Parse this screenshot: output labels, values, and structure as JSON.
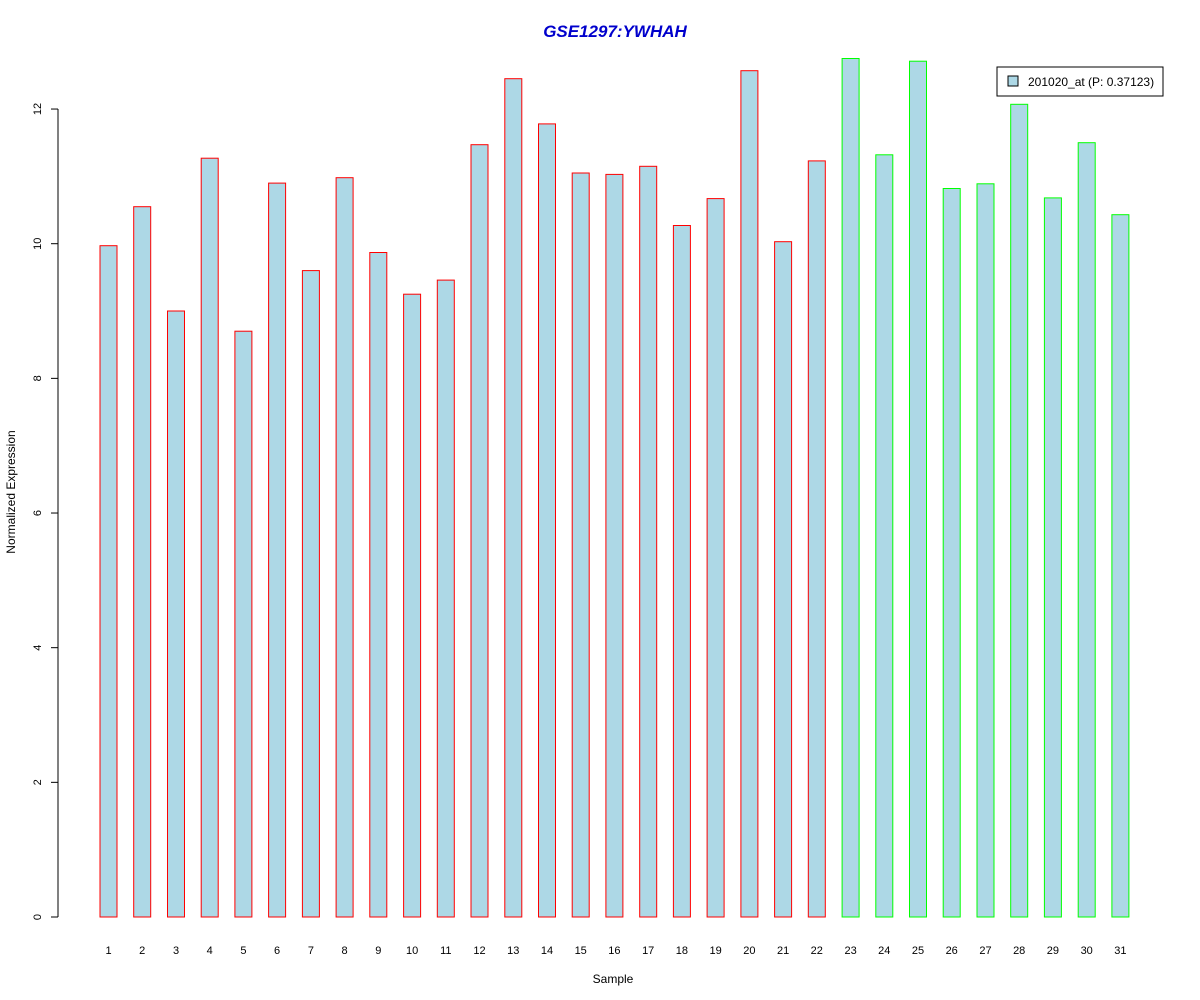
{
  "chart_data": {
    "type": "bar",
    "title": "GSE1297:YWHAH",
    "xlabel": "Sample",
    "ylabel": "Normalized Expression",
    "ylim": [
      0,
      12.8
    ],
    "yticks": [
      0,
      2,
      4,
      6,
      8,
      10,
      12
    ],
    "grid": false,
    "legend_position": "top-right",
    "categories": [
      "1",
      "2",
      "3",
      "4",
      "5",
      "6",
      "7",
      "8",
      "9",
      "10",
      "11",
      "12",
      "13",
      "14",
      "15",
      "16",
      "17",
      "18",
      "19",
      "20",
      "21",
      "22",
      "23",
      "24",
      "25",
      "26",
      "27",
      "28",
      "29",
      "30",
      "31"
    ],
    "series": [
      {
        "name": "201020_at (P: 0.37123)",
        "fill_color": "#add8e6",
        "values": [
          9.97,
          10.55,
          9.0,
          11.27,
          8.7,
          10.9,
          9.6,
          10.98,
          9.87,
          9.25,
          9.46,
          11.47,
          12.45,
          11.78,
          11.05,
          11.03,
          11.15,
          10.27,
          10.67,
          12.57,
          10.03,
          11.23,
          12.75,
          11.32,
          12.71,
          10.82,
          10.89,
          12.07,
          10.68,
          11.5,
          10.43
        ],
        "border_colors": [
          "#ff0000",
          "#ff0000",
          "#ff0000",
          "#ff0000",
          "#ff0000",
          "#ff0000",
          "#ff0000",
          "#ff0000",
          "#ff0000",
          "#ff0000",
          "#ff0000",
          "#ff0000",
          "#ff0000",
          "#ff0000",
          "#ff0000",
          "#ff0000",
          "#ff0000",
          "#ff0000",
          "#ff0000",
          "#ff0000",
          "#ff0000",
          "#ff0000",
          "#00ff00",
          "#00ff00",
          "#00ff00",
          "#00ff00",
          "#00ff00",
          "#00ff00",
          "#00ff00",
          "#00ff00",
          "#00ff00"
        ]
      }
    ],
    "title_color": "#0000cc"
  }
}
